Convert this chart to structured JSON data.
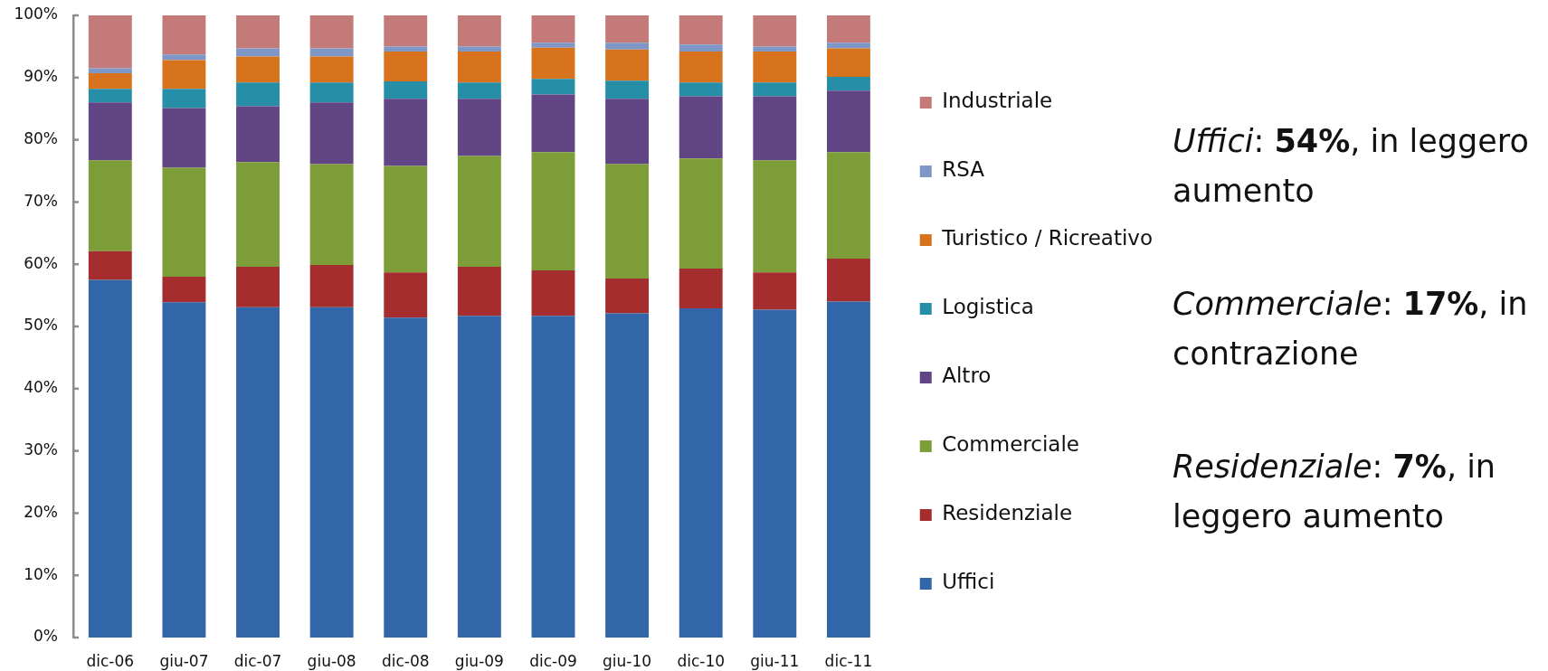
{
  "chart_data": {
    "type": "bar",
    "stacked": true,
    "categories": [
      "dic-06",
      "giu-07",
      "dic-07",
      "giu-08",
      "dic-08",
      "giu-09",
      "dic-09",
      "giu-10",
      "dic-10",
      "giu-11",
      "dic-11"
    ],
    "series": [
      {
        "name": "Uffici",
        "color": "#3366a8",
        "values": [
          57.5,
          53.9,
          53.1,
          53.1,
          51.4,
          51.7,
          51.7,
          52.1,
          52.9,
          52.7,
          54.0
        ]
      },
      {
        "name": "Residenziale",
        "color": "#a52d2d",
        "values": [
          4.6,
          4.1,
          6.5,
          6.8,
          7.3,
          7.9,
          7.3,
          5.6,
          6.4,
          6.0,
          6.9
        ]
      },
      {
        "name": "Commerciale",
        "color": "#7d9d38",
        "values": [
          14.6,
          17.5,
          16.8,
          16.2,
          17.1,
          17.8,
          19.0,
          18.4,
          17.7,
          18.0,
          17.1
        ]
      },
      {
        "name": "Altro",
        "color": "#614584",
        "values": [
          9.3,
          9.6,
          9.0,
          9.9,
          10.8,
          9.2,
          9.3,
          10.5,
          10.0,
          10.3,
          9.9
        ]
      },
      {
        "name": "Logistica",
        "color": "#278ea8",
        "values": [
          2.2,
          3.1,
          3.8,
          3.2,
          2.8,
          2.6,
          2.5,
          2.9,
          2.2,
          2.2,
          2.2
        ]
      },
      {
        "name": "Turistico / Ricreativo",
        "color": "#d7721d",
        "values": [
          2.5,
          4.6,
          4.2,
          4.2,
          4.8,
          5.0,
          5.0,
          5.0,
          5.0,
          5.0,
          4.6
        ]
      },
      {
        "name": "RSA",
        "color": "#7f97c6",
        "values": [
          0.8,
          0.9,
          1.3,
          1.3,
          0.8,
          0.8,
          0.8,
          1.1,
          1.1,
          0.8,
          0.9
        ]
      },
      {
        "name": "Industriale",
        "color": "#c47a78",
        "values": [
          8.5,
          6.3,
          5.3,
          5.3,
          5.0,
          5.0,
          4.4,
          4.4,
          4.7,
          5.0,
          4.4
        ]
      }
    ],
    "ylim": [
      0,
      100
    ],
    "yticks": [
      {
        "value": 0,
        "label": "0%"
      },
      {
        "value": 10,
        "label": "10%"
      },
      {
        "value": 20,
        "label": "20%"
      },
      {
        "value": 30,
        "label": "30%"
      },
      {
        "value": 40,
        "label": "40%"
      },
      {
        "value": 50,
        "label": "50%"
      },
      {
        "value": 60,
        "label": "60%"
      },
      {
        "value": 70,
        "label": "70%"
      },
      {
        "value": 80,
        "label": "80%"
      },
      {
        "value": 90,
        "label": "90%"
      },
      {
        "value": 100,
        "label": "100%"
      }
    ],
    "legend": "right",
    "grid": false,
    "annotations": [
      "Uffici: 54%, in leggero aumento",
      "Commerciale: 17%, in contrazione",
      "Residenziale: 7%, in leggero aumento"
    ]
  }
}
